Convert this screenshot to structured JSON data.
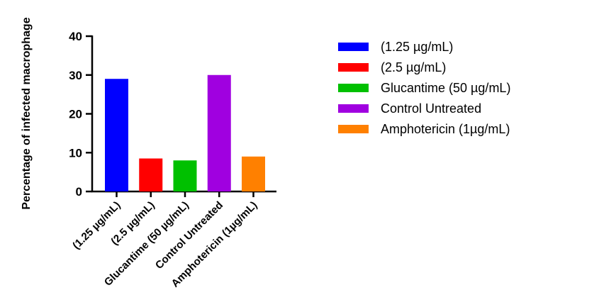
{
  "chart_data": {
    "type": "bar",
    "categories": [
      "(1.25 µg/mL)",
      "(2.5 µg/mL)",
      "Glucantime  (50 µg/mL)",
      "Control Untreated",
      "Amphotericin (1µg/mL)"
    ],
    "values": [
      29,
      8.5,
      8,
      30,
      9
    ],
    "colors": [
      "#0000ff",
      "#ff0000",
      "#00c000",
      "#a000e0",
      "#ff8000"
    ],
    "title": "",
    "xlabel": "",
    "ylabel": "Percentage of infected macrophage",
    "ylim": [
      0,
      40
    ],
    "yticks": [
      0,
      10,
      20,
      30,
      40
    ],
    "grid": false,
    "legend": {
      "placement": "right",
      "entries": [
        "(1.25 µg/mL)",
        "(2.5 µg/mL)",
        "Glucantime  (50 µg/mL)",
        "Control Untreated",
        "Amphotericin (1µg/mL)"
      ]
    }
  }
}
